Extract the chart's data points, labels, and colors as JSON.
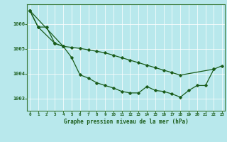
{
  "title": "Graphe pression niveau de la mer (hPa)",
  "background_color": "#b8e8ec",
  "grid_color": "#c8d8c8",
  "line_color": "#1a5c1a",
  "xlim": [
    -0.3,
    23.3
  ],
  "ylim": [
    1002.5,
    1006.8
  ],
  "xticks": [
    0,
    1,
    2,
    3,
    4,
    5,
    6,
    7,
    8,
    9,
    10,
    11,
    12,
    13,
    14,
    15,
    16,
    17,
    18,
    19,
    20,
    21,
    22,
    23
  ],
  "yticks": [
    1003,
    1004,
    1005,
    1006
  ],
  "line1_x": [
    0,
    1,
    2,
    3,
    4
  ],
  "line1_y": [
    1006.55,
    1005.88,
    1005.88,
    1005.22,
    1005.1
  ],
  "line2_x": [
    0,
    1,
    3,
    4,
    5,
    6,
    7,
    8,
    9,
    10,
    11,
    12,
    13,
    14,
    15,
    16,
    17,
    18,
    19,
    20,
    21,
    22,
    23
  ],
  "line2_y": [
    1006.55,
    1005.88,
    1005.22,
    1005.1,
    1004.65,
    1003.95,
    1003.82,
    1003.63,
    1003.52,
    1003.42,
    1003.28,
    1003.22,
    1003.22,
    1003.48,
    1003.32,
    1003.28,
    1003.18,
    1003.05,
    1003.32,
    1003.52,
    1003.52,
    1004.18,
    1004.32
  ],
  "line3_x": [
    0,
    4,
    5,
    6,
    7,
    8,
    9,
    10,
    11,
    12,
    13,
    14,
    15,
    16,
    17,
    18,
    22
  ],
  "line3_y": [
    1006.55,
    1005.1,
    1005.06,
    1005.02,
    1004.96,
    1004.9,
    1004.84,
    1004.74,
    1004.64,
    1004.54,
    1004.44,
    1004.34,
    1004.24,
    1004.14,
    1004.04,
    1003.94,
    1004.18
  ]
}
